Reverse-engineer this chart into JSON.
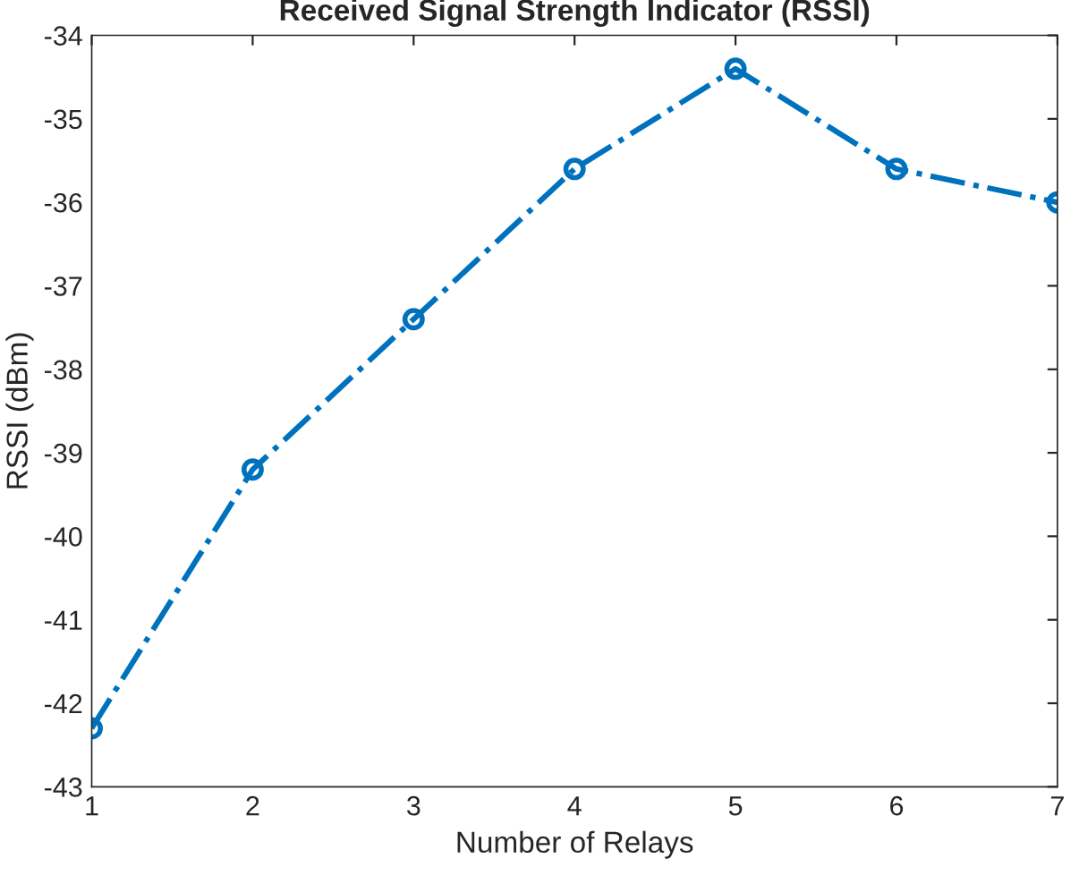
{
  "chart_data": {
    "type": "line",
    "title": "Received Signal Strength Indicator (RSSI)",
    "xlabel": "Number of Relays",
    "ylabel": "RSSI (dBm)",
    "x": [
      1,
      2,
      3,
      4,
      5,
      6,
      7
    ],
    "series": [
      {
        "color": "#0072bd",
        "values": [
          -42.3,
          -39.2,
          -37.4,
          -35.6,
          -34.4,
          -35.6,
          -36.0
        ]
      }
    ],
    "xlim": [
      1,
      7
    ],
    "xticks": [
      1,
      2,
      3,
      4,
      5,
      6,
      7
    ],
    "ylim": [
      -43,
      -34
    ],
    "yticks": [
      -43,
      -42,
      -41,
      -40,
      -39,
      -38,
      -37,
      -36,
      -35,
      -34
    ],
    "marker": "circle",
    "line_style": "dashdot",
    "grid": false,
    "legend": false
  }
}
